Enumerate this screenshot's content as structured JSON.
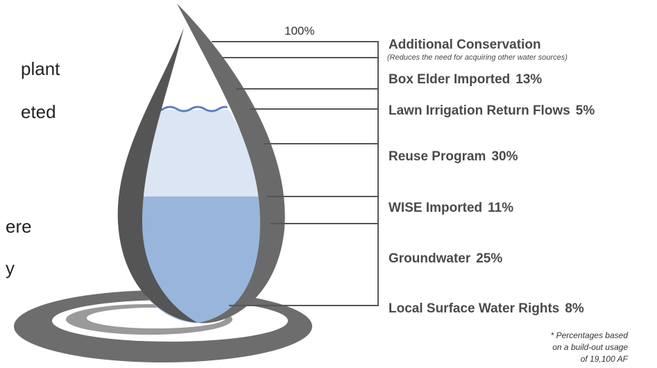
{
  "side_text": [
    "plant",
    "eted",
    "ere",
    "y"
  ],
  "top_label": "100%",
  "items": [
    {
      "label": "Additional Conservation",
      "note": "(Reduces the need for acquiring other water sources)"
    },
    {
      "label": "Box Elder Imported",
      "percent": "13%"
    },
    {
      "label": "Lawn Irrigation Return Flows",
      "percent": "5%"
    },
    {
      "label": "Reuse Program",
      "percent": "30%"
    },
    {
      "label": "WISE Imported",
      "percent": "11%"
    },
    {
      "label": "Groundwater",
      "percent": "25%"
    },
    {
      "label": "Local Surface Water Rights",
      "percent": "8%"
    }
  ],
  "footnote": [
    "* Percentages based",
    "on a build-out usage",
    "of 19,100 AF"
  ]
}
